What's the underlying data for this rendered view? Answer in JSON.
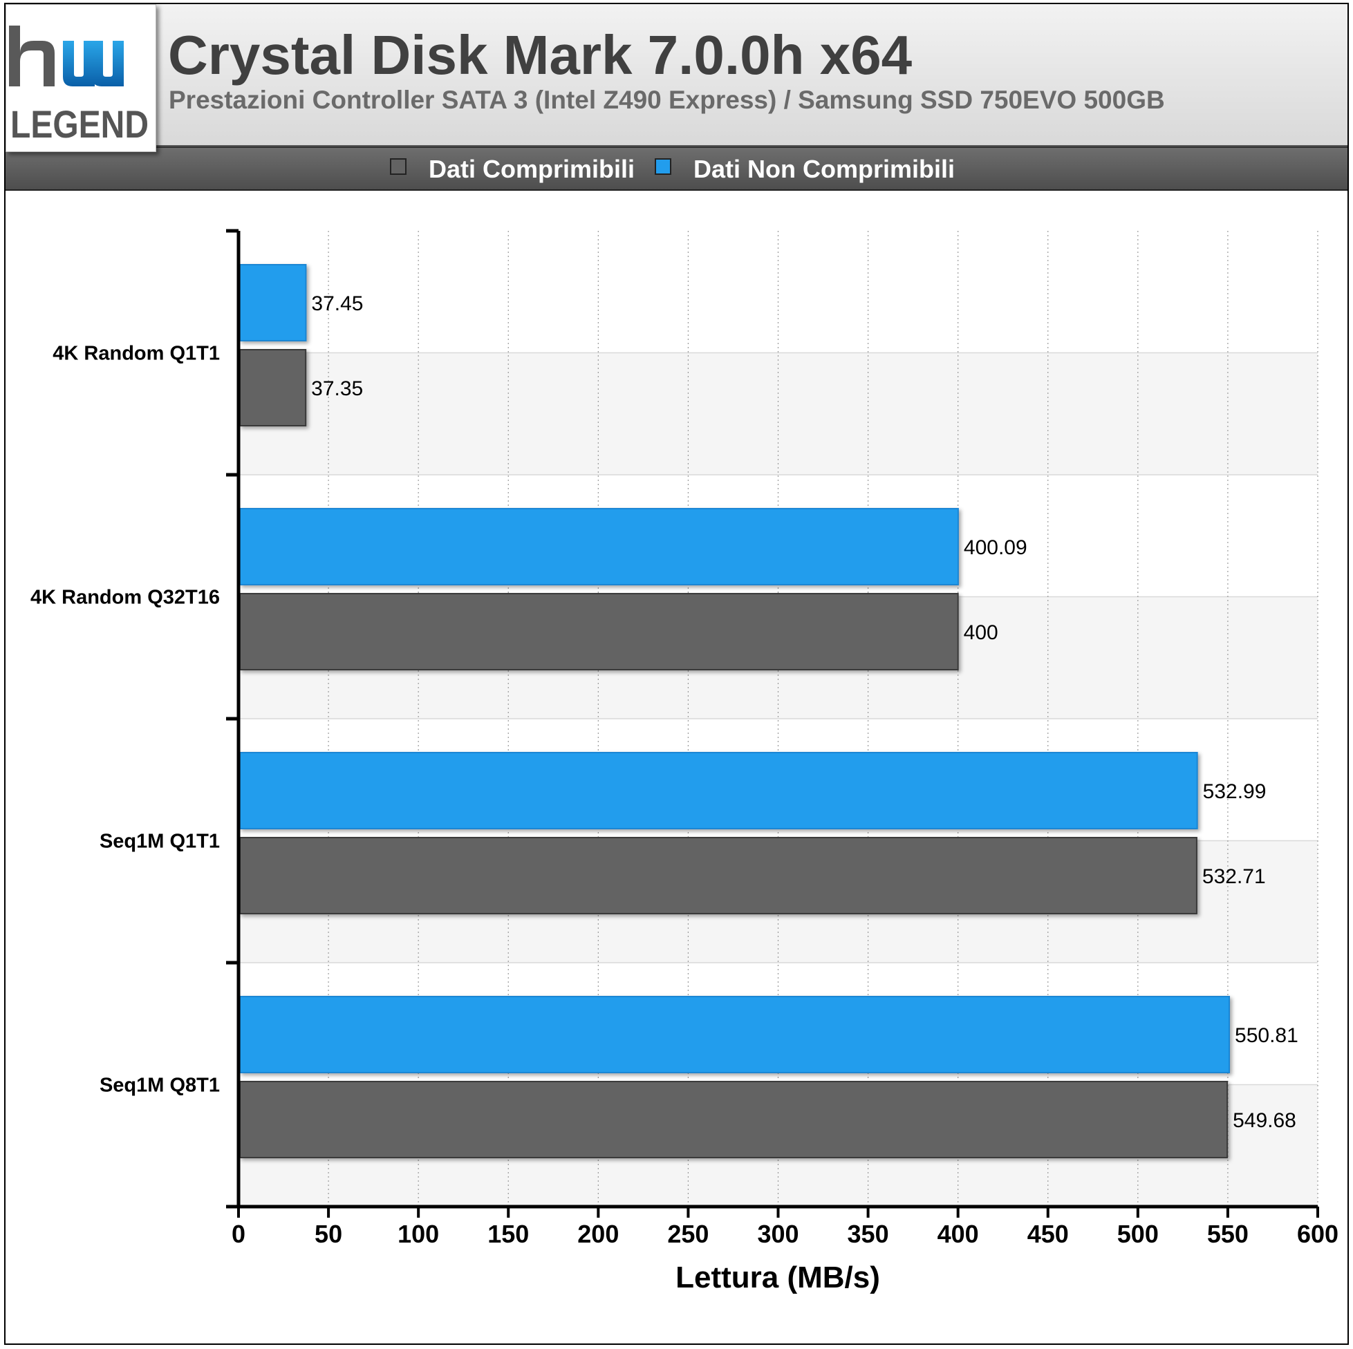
{
  "header": {
    "title": "Crystal Disk Mark 7.0.0h x64",
    "subtitle": "Prestazioni Controller SATA 3 (Intel Z490 Express) / Samsung SSD 750EVO 500GB",
    "logo_text": "LEGEND"
  },
  "legend": {
    "items": [
      {
        "label": "Dati Comprimibili",
        "color": "#636363"
      },
      {
        "label": "Dati Non Comprimibili",
        "color": "#229ded"
      }
    ]
  },
  "chart_data": {
    "type": "bar",
    "orientation": "horizontal",
    "categories": [
      "4K Random Q1T1",
      "4K Random Q32T16",
      "Seq1M Q1T1",
      "Seq1M Q8T1"
    ],
    "series": [
      {
        "name": "Dati Non Comprimibili",
        "color": "#229ded",
        "values": [
          37.45,
          400.09,
          532.99,
          550.81
        ]
      },
      {
        "name": "Dati Comprimibili",
        "color": "#636363",
        "values": [
          37.35,
          400,
          532.71,
          549.68
        ]
      }
    ],
    "value_labels": [
      [
        "37.45",
        "400.09",
        "532.99",
        "550.81"
      ],
      [
        "37.35",
        "400",
        "532.71",
        "549.68"
      ]
    ],
    "xlabel": "Lettura (MB/s)",
    "xlim": [
      0,
      600
    ],
    "xticks": [
      "0",
      "50",
      "100",
      "150",
      "200",
      "250",
      "300",
      "350",
      "400",
      "450",
      "500",
      "550",
      "600"
    ],
    "grid": "vertical-dotted",
    "legend_position": "top"
  }
}
